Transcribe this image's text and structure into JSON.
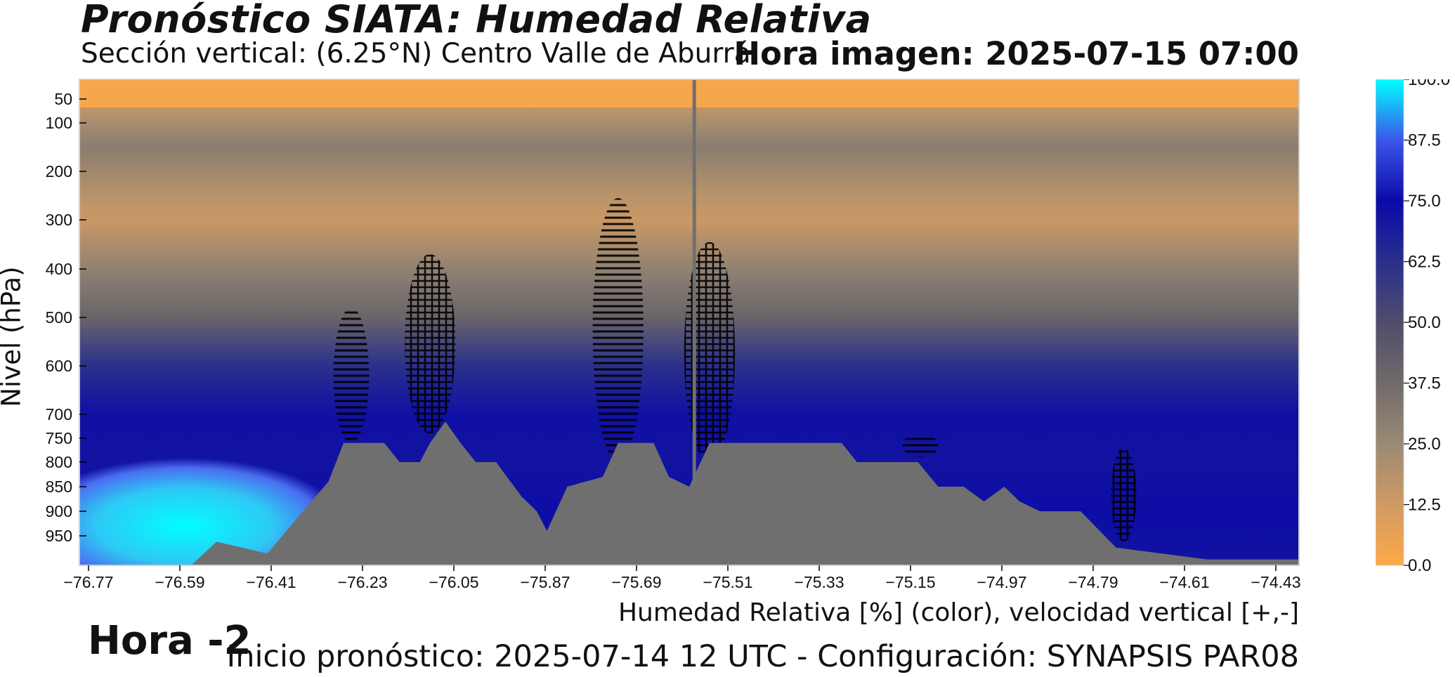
{
  "header": {
    "title": "Pronóstico SIATA: Humedad Relativa",
    "subtitle": "Sección vertical: (6.25°N) Centro Valle de Aburrá",
    "image_time": "Hora imagen: 2025-07-15 07:00"
  },
  "hour_label": "Hora -2",
  "footer": "Inicio pronóstico: 2025-07-14 12 UTC - Configuración: SYNAPSIS PAR08",
  "colors": {
    "dry": "#ffa947",
    "mid": "#5a5a66",
    "moist": "#0a0aa8",
    "saturated": "#00ffff",
    "terrain": "#6f6f6f"
  },
  "chart_data": {
    "type": "heatmap",
    "title": "Pronóstico SIATA: Humedad Relativa",
    "xlabel": "Humedad Relativa [%] (color), velocidad vertical [+,-]",
    "ylabel": "Nivel (hPa)",
    "x_ticks": [
      "−76.77",
      "−76.59",
      "−76.41",
      "−76.23",
      "−76.05",
      "−75.87",
      "−75.69",
      "−75.51",
      "−75.33",
      "−75.15",
      "−74.97",
      "−74.79",
      "−74.61",
      "−74.43"
    ],
    "y_ticks": [
      "50",
      "100",
      "200",
      "300",
      "400",
      "500",
      "600",
      "700",
      "750",
      "800",
      "850",
      "900",
      "950"
    ],
    "xlim": [
      -76.77,
      -74.37
    ],
    "ylim": [
      1000,
      15
    ],
    "colorbar": {
      "ticks": [
        "100.0",
        "87.5",
        "75.0",
        "62.5",
        "50.0",
        "37.5",
        "25.0",
        "12.5",
        "0.0"
      ],
      "range": [
        0,
        100
      ]
    },
    "rh_profile_by_level": [
      {
        "p": 30,
        "rh": 8
      },
      {
        "p": 100,
        "rh": 22
      },
      {
        "p": 150,
        "rh": 30
      },
      {
        "p": 250,
        "rh": 18
      },
      {
        "p": 300,
        "rh": 14
      },
      {
        "p": 400,
        "rh": 28
      },
      {
        "p": 500,
        "rh": 40
      },
      {
        "p": 600,
        "rh": 62
      },
      {
        "p": 700,
        "rh": 73
      },
      {
        "p": 800,
        "rh": 72
      },
      {
        "p": 900,
        "rh": 74
      },
      {
        "p": 1000,
        "rh": 72
      }
    ],
    "saturated_zone": {
      "lon_range": [
        -76.77,
        -76.3
      ],
      "p_range": [
        820,
        1000
      ],
      "rh": 98
    },
    "terrain_surface_pressure": [
      {
        "lon": -76.77,
        "p": 1000
      },
      {
        "lon": -76.55,
        "p": 1000
      },
      {
        "lon": -76.5,
        "p": 960
      },
      {
        "lon": -76.45,
        "p": 970
      },
      {
        "lon": -76.4,
        "p": 980
      },
      {
        "lon": -76.33,
        "p": 900
      },
      {
        "lon": -76.28,
        "p": 840
      },
      {
        "lon": -76.25,
        "p": 760
      },
      {
        "lon": -76.17,
        "p": 760
      },
      {
        "lon": -76.14,
        "p": 800
      },
      {
        "lon": -76.1,
        "p": 800
      },
      {
        "lon": -76.08,
        "p": 760
      },
      {
        "lon": -76.05,
        "p": 715
      },
      {
        "lon": -76.02,
        "p": 760
      },
      {
        "lon": -75.99,
        "p": 800
      },
      {
        "lon": -75.95,
        "p": 800
      },
      {
        "lon": -75.9,
        "p": 870
      },
      {
        "lon": -75.87,
        "p": 900
      },
      {
        "lon": -75.85,
        "p": 940
      },
      {
        "lon": -75.81,
        "p": 850
      },
      {
        "lon": -75.74,
        "p": 830
      },
      {
        "lon": -75.71,
        "p": 760
      },
      {
        "lon": -75.64,
        "p": 760
      },
      {
        "lon": -75.61,
        "p": 830
      },
      {
        "lon": -75.57,
        "p": 850
      },
      {
        "lon": -75.53,
        "p": 760
      },
      {
        "lon": -75.27,
        "p": 760
      },
      {
        "lon": -75.24,
        "p": 800
      },
      {
        "lon": -75.12,
        "p": 800
      },
      {
        "lon": -75.08,
        "p": 850
      },
      {
        "lon": -75.03,
        "p": 850
      },
      {
        "lon": -74.99,
        "p": 880
      },
      {
        "lon": -74.95,
        "p": 850
      },
      {
        "lon": -74.92,
        "p": 880
      },
      {
        "lon": -74.88,
        "p": 900
      },
      {
        "lon": -74.8,
        "p": 900
      },
      {
        "lon": -74.73,
        "p": 970
      },
      {
        "lon": -74.64,
        "p": 980
      },
      {
        "lon": -74.55,
        "p": 990
      },
      {
        "lon": -74.37,
        "p": 990
      }
    ],
    "vertical_marker_lon": -75.56,
    "vertical_velocity_hatched_regions": [
      {
        "lon_range": [
          -76.27,
          -76.2
        ],
        "p_range": [
          480,
          760
        ]
      },
      {
        "lon_range": [
          -76.13,
          -76.03
        ],
        "p_range": [
          370,
          740
        ]
      },
      {
        "lon_range": [
          -75.76,
          -75.66
        ],
        "p_range": [
          255,
          800
        ]
      },
      {
        "lon_range": [
          -75.58,
          -75.48
        ],
        "p_range": [
          345,
          800
        ]
      },
      {
        "lon_range": [
          -75.15,
          -75.08
        ],
        "p_range": [
          740,
          790
        ]
      },
      {
        "lon_range": [
          -74.74,
          -74.69
        ],
        "p_range": [
          770,
          960
        ]
      }
    ]
  }
}
